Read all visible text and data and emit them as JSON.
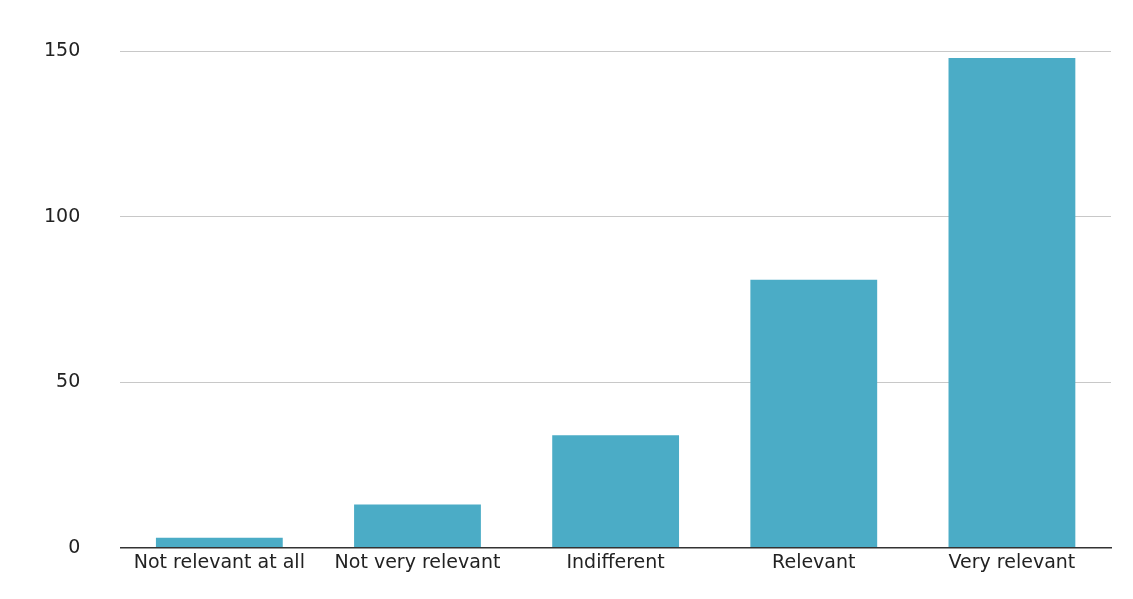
{
  "chart_data": {
    "type": "bar",
    "categories": [
      "Not relevant at all",
      "Not very relevant",
      "Indifferent",
      "Relevant",
      "Very relevant"
    ],
    "values": [
      3,
      13,
      34,
      81,
      148
    ],
    "color": "#4bacc6",
    "ylim": [
      0,
      150
    ],
    "yticks": [
      0,
      50,
      100,
      150
    ],
    "grid": "y",
    "legend": false
  }
}
